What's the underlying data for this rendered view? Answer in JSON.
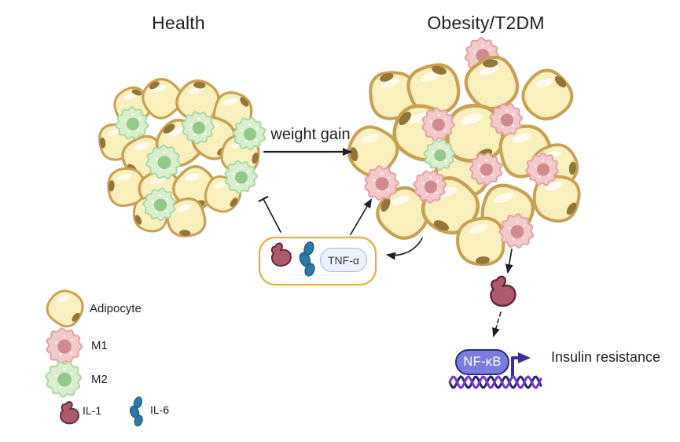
{
  "panels": {
    "left_title": "Health",
    "right_title": "Obesity/T2DM"
  },
  "transition": {
    "weight_gain_label": "weight gain"
  },
  "cytokine_box": {
    "tnf_label": "TNF-α",
    "contents": [
      "il1-icon",
      "il6-icon",
      "tnf-pill"
    ]
  },
  "pathway": {
    "nfkb_label": "NF-κB",
    "outcome_label": "Insulin resistance"
  },
  "legend": {
    "items": [
      {
        "icon": "adipocyte-icon",
        "label": "Adipocyte"
      },
      {
        "icon": "m1-macrophage-icon",
        "label": "M1"
      },
      {
        "icon": "m2-macrophage-icon",
        "label": "M2"
      },
      {
        "icon": "il1-icon",
        "label": "IL-1"
      },
      {
        "icon": "il6-icon",
        "label": "IL-6"
      }
    ]
  },
  "colors": {
    "text": "#1f1f1f",
    "arrow": "#1f1f1f",
    "adipocyte_fill": "#faf0bd",
    "adipocyte_border": "#c7a254",
    "adipocyte_nucleus": "#8f6f31",
    "m1_fill": "#f3c9ca",
    "m1_edge": "#e2a3a6",
    "m1_nucleus": "#d08b8f",
    "m2_fill": "#d8eecd",
    "m2_edge": "#aed8a2",
    "m2_nucleus": "#93c88b",
    "il1_fill": "#ad5a6e",
    "il1_stroke": "#63293a",
    "il6_fill": "#2d7aa6",
    "il6_stroke": "#1d5a80",
    "box_border": "#f3aa3c",
    "tnf_pill_fill": "#eef3fd",
    "tnf_pill_border": "#a3b5e6",
    "nfkb_fill": "#7b7ce0",
    "nfkb_border": "#2c2c7a",
    "transcription_arrow": "#3f2d99",
    "dna_dark": "#28286b",
    "dna_purple": "#7537d0"
  }
}
